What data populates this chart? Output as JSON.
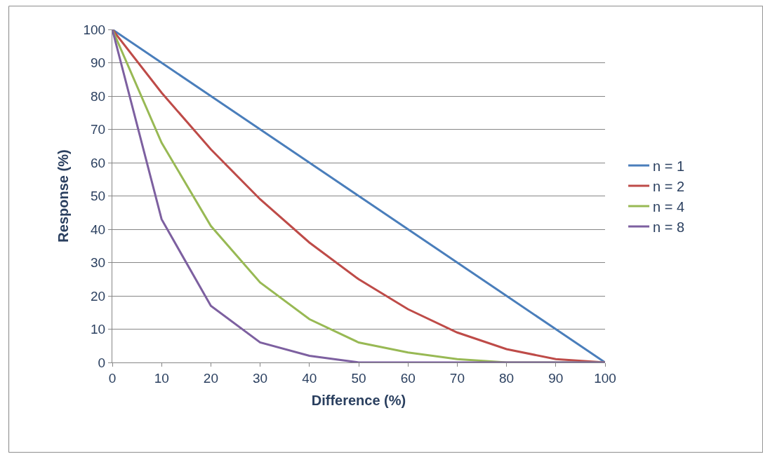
{
  "chart_data": {
    "type": "line",
    "xlabel": "Difference (%)",
    "ylabel": "Response (%)",
    "x": [
      0,
      10,
      20,
      30,
      40,
      50,
      60,
      70,
      80,
      90,
      100
    ],
    "series": [
      {
        "name": "n = 1",
        "color": "#4a7ebb",
        "values": [
          100,
          90,
          80,
          70,
          60,
          50,
          40,
          30,
          20,
          10,
          0
        ]
      },
      {
        "name": "n = 2",
        "color": "#be4b48",
        "values": [
          100,
          81,
          64,
          49,
          36,
          25,
          16,
          9,
          4,
          1,
          0
        ]
      },
      {
        "name": "n = 4",
        "color": "#98b954",
        "values": [
          100,
          66,
          41,
          24,
          13,
          6,
          3,
          1,
          0,
          0,
          0
        ]
      },
      {
        "name": "n = 8",
        "color": "#7d60a0",
        "values": [
          100,
          43,
          17,
          6,
          2,
          0,
          0,
          0,
          0,
          0,
          0
        ]
      }
    ],
    "xlim": [
      0,
      100
    ],
    "xticks": [
      0,
      10,
      20,
      30,
      40,
      50,
      60,
      70,
      80,
      90,
      100
    ],
    "ylim": [
      0,
      100
    ],
    "yticks": [
      0,
      10,
      20,
      30,
      40,
      50,
      60,
      70,
      80,
      90,
      100
    ],
    "grid": "y",
    "legend": "right",
    "marker": "none",
    "line_style": "solid"
  }
}
